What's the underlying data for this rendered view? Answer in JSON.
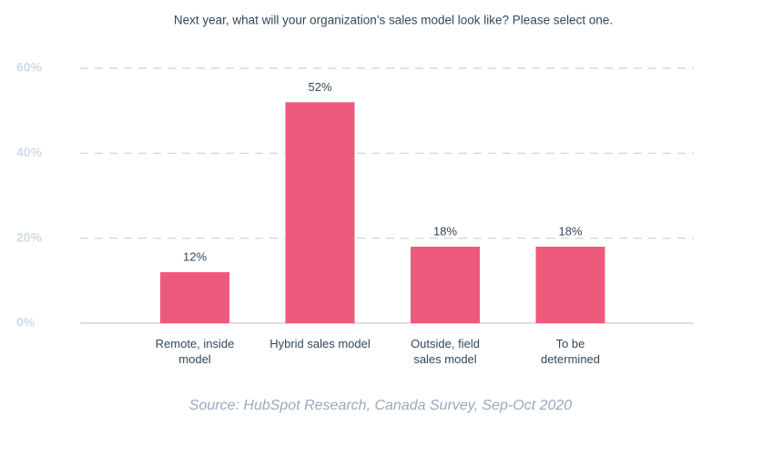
{
  "chart_data": {
    "type": "bar",
    "title": "Next year, what will your organization’s sales model look like? Please select one.",
    "categories": [
      "Remote, inside model",
      "Hybrid sales model",
      "Outside, field sales model",
      "To be determined"
    ],
    "values": [
      12,
      52,
      18,
      18
    ],
    "value_labels": [
      "12%",
      "52%",
      "18%",
      "18%"
    ],
    "color": "#ee5a7c",
    "ylim": [
      0,
      60
    ],
    "yticks": [
      {
        "value": 0,
        "label": "0%"
      },
      {
        "value": 20,
        "label": "20%"
      },
      {
        "value": 40,
        "label": "40%"
      },
      {
        "value": 60,
        "label": "60%"
      }
    ],
    "grid": true,
    "source": "Source: HubSpot Research, Canada Survey, Sep-Oct 2020"
  }
}
